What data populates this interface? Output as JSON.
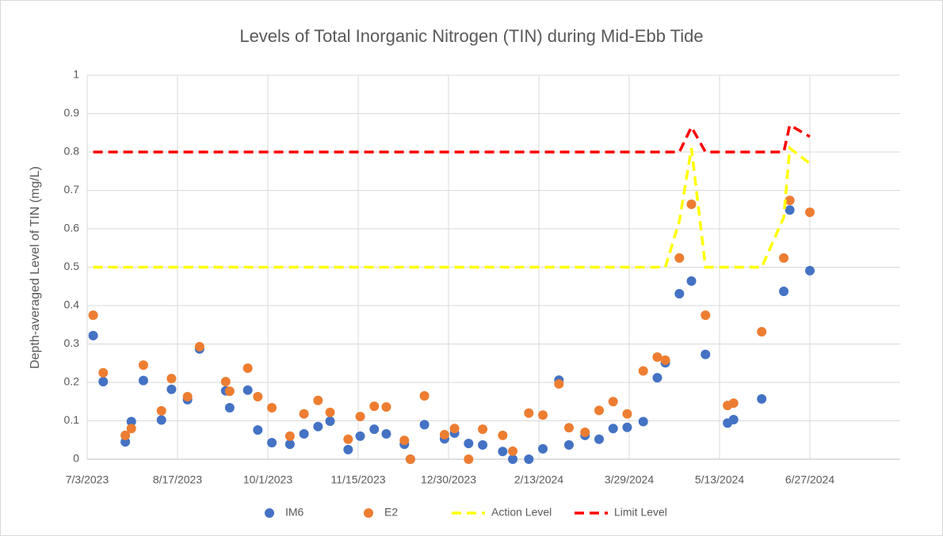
{
  "chart_data": {
    "type": "scatter",
    "title": "Levels of Total Inorganic Nitrogen (TIN) during Mid-Ebb Tide",
    "y_label": "Depth-averaged Level of  TIN (mg/L)",
    "x": [
      "2023-07-06",
      "2023-07-11",
      "2023-07-22",
      "2023-07-25",
      "2023-07-31",
      "2023-08-09",
      "2023-08-14",
      "2023-08-22",
      "2023-08-28",
      "2023-09-10",
      "2023-09-12",
      "2023-09-21",
      "2023-09-26",
      "2023-10-03",
      "2023-10-12",
      "2023-10-19",
      "2023-10-26",
      "2023-11-01",
      "2023-11-10",
      "2023-11-16",
      "2023-11-23",
      "2023-11-29",
      "2023-12-08",
      "2023-12-11",
      "2023-12-18",
      "2023-12-28",
      "2024-01-02",
      "2024-01-09",
      "2024-01-16",
      "2024-01-26",
      "2024-01-31",
      "2024-02-08",
      "2024-02-15",
      "2024-02-23",
      "2024-02-28",
      "2024-03-07",
      "2024-03-14",
      "2024-03-21",
      "2024-03-28",
      "2024-04-05",
      "2024-04-12",
      "2024-04-16",
      "2024-04-23",
      "2024-04-29",
      "2024-05-06",
      "2024-05-17",
      "2024-05-20",
      "2024-06-03",
      "2024-06-14",
      "2024-06-17",
      "2024-06-27"
    ],
    "series": [
      {
        "name": "IM6",
        "color": "#4472c4",
        "mode": "markers",
        "values": [
          0.322,
          0.202,
          0.045,
          0.098,
          0.205,
          0.102,
          0.182,
          0.155,
          0.287,
          0.178,
          0.134,
          0.18,
          0.076,
          0.043,
          0.039,
          0.066,
          0.085,
          0.099,
          0.025,
          0.06,
          0.078,
          0.066,
          0.039,
          0,
          0.09,
          0.053,
          0.068,
          0.041,
          0.037,
          0.02,
          0,
          0,
          0.027,
          0.206,
          0.037,
          0.062,
          0.052,
          0.08,
          0.083,
          0.098,
          0.212,
          0.251,
          0.431,
          0.464,
          0.273,
          0.094,
          0.103,
          0.157,
          0.437,
          0.649,
          0.491
        ]
      },
      {
        "name": "E2",
        "color": "#ed7d31",
        "mode": "markers",
        "values": [
          0.375,
          0.225,
          0.062,
          0.08,
          0.245,
          0.126,
          0.21,
          0.163,
          0.293,
          0.202,
          0.177,
          0.237,
          0.163,
          0.134,
          0.06,
          0.118,
          0.153,
          0.122,
          0.052,
          0.111,
          0.138,
          0.136,
          0.049,
          0,
          0.165,
          0.064,
          0.08,
          0,
          0.078,
          0.062,
          0.021,
          0.12,
          0.115,
          0.196,
          0.082,
          0.07,
          0.127,
          0.15,
          0.118,
          0.23,
          0.266,
          0.258,
          0.524,
          0.664,
          0.375,
          0.14,
          0.146,
          0.332,
          0.524,
          0.674,
          0.643
        ]
      },
      {
        "name": "Action Level",
        "color": "#ffff00",
        "mode": "dashed-line",
        "values": [
          0.5,
          0.5,
          0.5,
          0.5,
          0.5,
          0.5,
          0.5,
          0.5,
          0.5,
          0.5,
          0.5,
          0.5,
          0.5,
          0.5,
          0.5,
          0.5,
          0.5,
          0.5,
          0.5,
          0.5,
          0.5,
          0.5,
          0.5,
          0.5,
          0.5,
          0.5,
          0.5,
          0.5,
          0.5,
          0.5,
          0.5,
          0.5,
          0.5,
          0.5,
          0.5,
          0.5,
          0.5,
          0.5,
          0.5,
          0.5,
          0.5,
          0.5,
          0.62,
          0.81,
          0.5,
          0.5,
          0.5,
          0.5,
          0.63,
          0.81,
          0.77
        ]
      },
      {
        "name": "Limit Level",
        "color": "#ff0000",
        "mode": "dashed-line",
        "values": [
          0.8,
          0.8,
          0.8,
          0.8,
          0.8,
          0.8,
          0.8,
          0.8,
          0.8,
          0.8,
          0.8,
          0.8,
          0.8,
          0.8,
          0.8,
          0.8,
          0.8,
          0.8,
          0.8,
          0.8,
          0.8,
          0.8,
          0.8,
          0.8,
          0.8,
          0.8,
          0.8,
          0.8,
          0.8,
          0.8,
          0.8,
          0.8,
          0.8,
          0.8,
          0.8,
          0.8,
          0.8,
          0.8,
          0.8,
          0.8,
          0.8,
          0.8,
          0.8,
          0.865,
          0.8,
          0.8,
          0.8,
          0.8,
          0.8,
          0.87,
          0.84
        ]
      }
    ],
    "xlim": [
      "2023-07-03",
      "2024-08-11"
    ],
    "xticks": [
      {
        "value": "2023-07-03",
        "label": "7/3/2023"
      },
      {
        "value": "2023-08-17",
        "label": "8/17/2023"
      },
      {
        "value": "2023-10-01",
        "label": "10/1/2023"
      },
      {
        "value": "2023-11-15",
        "label": "11/15/2023"
      },
      {
        "value": "2023-12-30",
        "label": "12/30/2023"
      },
      {
        "value": "2024-02-13",
        "label": "2/13/2024"
      },
      {
        "value": "2024-03-29",
        "label": "3/29/2024"
      },
      {
        "value": "2024-05-13",
        "label": "5/13/2024"
      },
      {
        "value": "2024-06-27",
        "label": "6/27/2024"
      }
    ],
    "ylim": [
      0,
      1
    ],
    "yticks": [
      0,
      0.1,
      0.2,
      0.3,
      0.4,
      0.5,
      0.6,
      0.7,
      0.8,
      0.9,
      1
    ],
    "grid": true,
    "legend": "bottom"
  }
}
